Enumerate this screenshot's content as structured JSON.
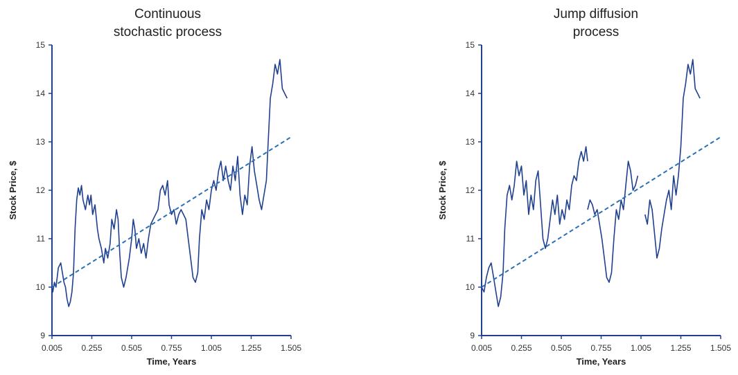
{
  "colors": {
    "axis": "#1f3f8f",
    "series": "#1f3f8f",
    "trend": "#2a6fb5"
  },
  "chart_data": [
    {
      "type": "line",
      "title_lines": [
        "Continuous",
        "stochastic process"
      ],
      "xlabel": "Time, Years",
      "ylabel": "Stock Price, $",
      "xlim": [
        0.005,
        1.505
      ],
      "ylim": [
        9,
        15
      ],
      "x_ticks": [
        0.005,
        0.255,
        0.505,
        0.755,
        1.005,
        1.255,
        1.505
      ],
      "x_tick_labels": [
        "0.005",
        "0.255",
        "0.505",
        "0.755",
        "1.005",
        "1.255",
        "1.505"
      ],
      "y_ticks": [
        9,
        10,
        11,
        12,
        13,
        14,
        15
      ],
      "y_tick_labels": [
        "9",
        "10",
        "11",
        "12",
        "13",
        "14",
        "15"
      ],
      "series": [
        {
          "style": "solid",
          "segments": [
            [
              [
                0.005,
                10.0
              ],
              [
                0.01,
                9.9
              ],
              [
                0.02,
                10.1
              ],
              [
                0.03,
                10.0
              ],
              [
                0.045,
                10.4
              ],
              [
                0.06,
                10.5
              ],
              [
                0.07,
                10.3
              ],
              [
                0.08,
                10.1
              ],
              [
                0.09,
                10.0
              ],
              [
                0.1,
                9.75
              ],
              [
                0.11,
                9.6
              ],
              [
                0.12,
                9.7
              ],
              [
                0.13,
                9.9
              ],
              [
                0.14,
                10.3
              ],
              [
                0.15,
                11.2
              ],
              [
                0.16,
                11.8
              ],
              [
                0.17,
                12.05
              ],
              [
                0.18,
                11.9
              ],
              [
                0.19,
                12.1
              ],
              [
                0.2,
                11.8
              ],
              [
                0.215,
                11.6
              ],
              [
                0.23,
                11.9
              ],
              [
                0.24,
                11.7
              ],
              [
                0.25,
                11.9
              ],
              [
                0.26,
                11.5
              ],
              [
                0.275,
                11.7
              ],
              [
                0.29,
                11.2
              ],
              [
                0.3,
                11.0
              ],
              [
                0.315,
                10.8
              ],
              [
                0.33,
                10.5
              ],
              [
                0.34,
                10.8
              ],
              [
                0.355,
                10.6
              ],
              [
                0.37,
                10.9
              ],
              [
                0.38,
                11.4
              ],
              [
                0.395,
                11.2
              ],
              [
                0.41,
                11.6
              ],
              [
                0.42,
                11.4
              ],
              [
                0.43,
                10.7
              ],
              [
                0.44,
                10.2
              ],
              [
                0.455,
                10.0
              ],
              [
                0.47,
                10.2
              ],
              [
                0.49,
                10.6
              ],
              [
                0.505,
                11.0
              ],
              [
                0.515,
                11.4
              ],
              [
                0.525,
                11.2
              ],
              [
                0.535,
                10.8
              ],
              [
                0.55,
                11.0
              ],
              [
                0.565,
                10.7
              ],
              [
                0.58,
                10.9
              ],
              [
                0.595,
                10.6
              ],
              [
                0.61,
                11.0
              ],
              [
                0.625,
                11.3
              ],
              [
                0.64,
                11.4
              ],
              [
                0.655,
                11.5
              ],
              [
                0.67,
                11.6
              ],
              [
                0.685,
                12.0
              ],
              [
                0.7,
                12.1
              ],
              [
                0.715,
                11.9
              ],
              [
                0.73,
                12.2
              ],
              [
                0.74,
                11.7
              ],
              [
                0.755,
                11.5
              ],
              [
                0.77,
                11.6
              ],
              [
                0.785,
                11.3
              ],
              [
                0.8,
                11.5
              ],
              [
                0.815,
                11.6
              ],
              [
                0.83,
                11.5
              ],
              [
                0.845,
                11.4
              ],
              [
                0.86,
                11.0
              ],
              [
                0.875,
                10.6
              ],
              [
                0.89,
                10.2
              ],
              [
                0.905,
                10.1
              ],
              [
                0.92,
                10.3
              ],
              [
                0.93,
                11.0
              ],
              [
                0.945,
                11.6
              ],
              [
                0.96,
                11.4
              ],
              [
                0.975,
                11.8
              ],
              [
                0.99,
                11.6
              ],
              [
                1.005,
                12.0
              ],
              [
                1.02,
                12.2
              ],
              [
                1.035,
                12.0
              ],
              [
                1.05,
                12.4
              ],
              [
                1.065,
                12.6
              ],
              [
                1.08,
                12.2
              ],
              [
                1.095,
                12.5
              ],
              [
                1.11,
                12.2
              ],
              [
                1.125,
                12.0
              ],
              [
                1.14,
                12.5
              ],
              [
                1.155,
                12.2
              ],
              [
                1.17,
                12.7
              ],
              [
                1.185,
                11.9
              ],
              [
                1.2,
                11.5
              ],
              [
                1.215,
                11.9
              ],
              [
                1.23,
                11.7
              ],
              [
                1.245,
                12.5
              ],
              [
                1.26,
                12.9
              ],
              [
                1.275,
                12.4
              ],
              [
                1.29,
                12.1
              ],
              [
                1.305,
                11.8
              ],
              [
                1.32,
                11.6
              ],
              [
                1.335,
                11.9
              ],
              [
                1.35,
                12.2
              ],
              [
                1.36,
                12.9
              ],
              [
                1.375,
                13.9
              ],
              [
                1.39,
                14.2
              ],
              [
                1.405,
                14.6
              ],
              [
                1.42,
                14.4
              ],
              [
                1.435,
                14.7
              ],
              [
                1.45,
                14.1
              ],
              [
                1.465,
                14.0
              ],
              [
                1.48,
                13.9
              ]
            ]
          ]
        },
        {
          "style": "dashed",
          "segments": [
            [
              [
                0.005,
                10.0
              ],
              [
                1.505,
                13.1
              ]
            ]
          ]
        }
      ]
    },
    {
      "type": "line",
      "title_lines": [
        "Jump diffusion",
        "process"
      ],
      "xlabel": "Time, Years",
      "ylabel": "Stock Price, $",
      "xlim": [
        0.005,
        1.505
      ],
      "ylim": [
        9,
        15
      ],
      "x_ticks": [
        0.005,
        0.255,
        0.505,
        0.755,
        1.005,
        1.255,
        1.505
      ],
      "x_tick_labels": [
        "0.005",
        "0.255",
        "0.505",
        "0.755",
        "1.005",
        "1.255",
        "1.505"
      ],
      "y_ticks": [
        9,
        10,
        11,
        12,
        13,
        14,
        15
      ],
      "y_tick_labels": [
        "9",
        "10",
        "11",
        "12",
        "13",
        "14",
        "15"
      ],
      "series": [
        {
          "style": "solid",
          "segments": [
            [
              [
                0.005,
                10.0
              ],
              [
                0.02,
                9.9
              ],
              [
                0.035,
                10.2
              ],
              [
                0.05,
                10.4
              ],
              [
                0.065,
                10.5
              ],
              [
                0.08,
                10.2
              ],
              [
                0.095,
                9.9
              ],
              [
                0.11,
                9.6
              ],
              [
                0.125,
                9.8
              ],
              [
                0.14,
                10.3
              ],
              [
                0.15,
                11.2
              ],
              [
                0.165,
                11.9
              ],
              [
                0.18,
                12.1
              ],
              [
                0.195,
                11.8
              ],
              [
                0.21,
                12.1
              ],
              [
                0.225,
                12.6
              ],
              [
                0.24,
                12.3
              ],
              [
                0.255,
                12.5
              ],
              [
                0.27,
                11.9
              ],
              [
                0.285,
                12.2
              ],
              [
                0.3,
                11.5
              ],
              [
                0.315,
                11.9
              ],
              [
                0.33,
                11.6
              ],
              [
                0.345,
                12.2
              ],
              [
                0.36,
                12.4
              ],
              [
                0.375,
                11.7
              ],
              [
                0.39,
                11.0
              ],
              [
                0.405,
                10.8
              ],
              [
                0.42,
                11.0
              ],
              [
                0.435,
                11.4
              ],
              [
                0.45,
                11.8
              ],
              [
                0.465,
                11.5
              ],
              [
                0.48,
                11.9
              ],
              [
                0.495,
                11.3
              ],
              [
                0.51,
                11.6
              ],
              [
                0.525,
                11.4
              ],
              [
                0.54,
                11.8
              ],
              [
                0.555,
                11.6
              ],
              [
                0.57,
                12.1
              ],
              [
                0.585,
                12.3
              ],
              [
                0.6,
                12.2
              ],
              [
                0.615,
                12.6
              ],
              [
                0.63,
                12.8
              ],
              [
                0.645,
                12.6
              ],
              [
                0.66,
                12.9
              ],
              [
                0.67,
                12.6
              ]
            ],
            [
              [
                0.67,
                11.6
              ],
              [
                0.685,
                11.8
              ],
              [
                0.7,
                11.7
              ],
              [
                0.715,
                11.5
              ],
              [
                0.73,
                11.6
              ],
              [
                0.745,
                11.3
              ],
              [
                0.76,
                11.0
              ],
              [
                0.775,
                10.6
              ],
              [
                0.79,
                10.2
              ],
              [
                0.805,
                10.1
              ],
              [
                0.82,
                10.3
              ],
              [
                0.835,
                11.0
              ],
              [
                0.85,
                11.6
              ],
              [
                0.865,
                11.4
              ],
              [
                0.88,
                11.8
              ],
              [
                0.895,
                11.6
              ],
              [
                0.91,
                12.1
              ],
              [
                0.925,
                12.6
              ],
              [
                0.94,
                12.4
              ],
              [
                0.955,
                12.0
              ],
              [
                0.97,
                12.1
              ],
              [
                0.985,
                12.3
              ]
            ],
            [
              [
                1.03,
                11.5
              ],
              [
                1.045,
                11.3
              ],
              [
                1.06,
                11.8
              ],
              [
                1.075,
                11.6
              ],
              [
                1.09,
                11.1
              ],
              [
                1.105,
                10.6
              ],
              [
                1.12,
                10.8
              ],
              [
                1.135,
                11.2
              ],
              [
                1.15,
                11.5
              ],
              [
                1.165,
                11.8
              ],
              [
                1.18,
                12.0
              ],
              [
                1.195,
                11.6
              ],
              [
                1.21,
                12.3
              ],
              [
                1.225,
                11.9
              ],
              [
                1.24,
                12.3
              ],
              [
                1.255,
                12.9
              ],
              [
                1.27,
                13.9
              ],
              [
                1.285,
                14.2
              ],
              [
                1.3,
                14.6
              ],
              [
                1.315,
                14.4
              ],
              [
                1.33,
                14.7
              ],
              [
                1.345,
                14.1
              ],
              [
                1.36,
                14.0
              ],
              [
                1.375,
                13.9
              ]
            ]
          ]
        },
        {
          "style": "dashed",
          "segments": [
            [
              [
                0.005,
                10.0
              ],
              [
                1.505,
                13.1
              ]
            ]
          ]
        }
      ]
    }
  ]
}
